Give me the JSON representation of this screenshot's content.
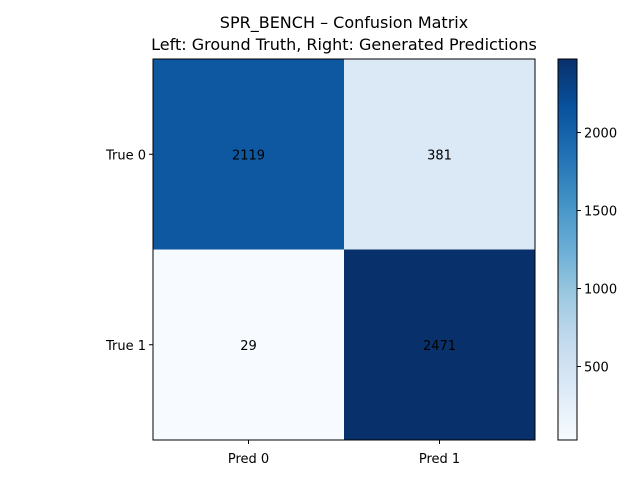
{
  "chart_data": {
    "type": "heatmap",
    "title": "SPR_BENCH – Confusion Matrix",
    "subtitle": "Left: Ground Truth, Right: Generated Predictions",
    "row_labels": [
      "True 0",
      "True 1"
    ],
    "col_labels": [
      "Pred 0",
      "Pred 1"
    ],
    "values": [
      [
        2119,
        381
      ],
      [
        29,
        2471
      ]
    ],
    "colormap": "Blues",
    "colorbar": {
      "min": 29,
      "max": 2471,
      "ticks": [
        500,
        1000,
        1500,
        2000
      ],
      "tick_labels": [
        "500",
        "1000",
        "1500",
        "2000"
      ]
    },
    "cell_colors": [
      [
        "#0e58a2",
        "#dbe9f6"
      ],
      [
        "#f7fbff",
        "#08306b"
      ]
    ]
  }
}
